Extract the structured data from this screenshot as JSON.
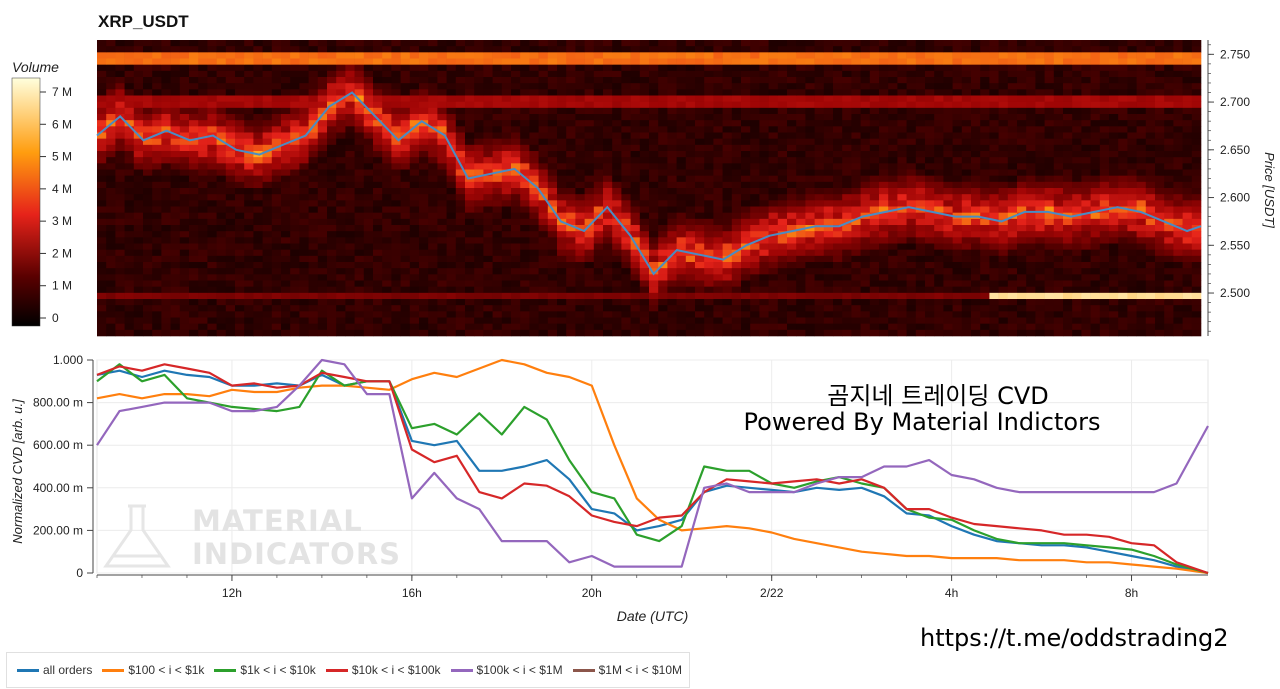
{
  "title": "XRP_USDT",
  "colorbar": {
    "label": "Volume",
    "ticks": [
      "7 M",
      "6 M",
      "5 M",
      "4 M",
      "3 M",
      "2 M",
      "1 M",
      "0"
    ]
  },
  "annotation": {
    "line1": "곰지네 트레이딩 CVD",
    "line2": "Powered By Material Indictors"
  },
  "watermark": {
    "line1": "MATERIAL",
    "line2": "INDICATORS"
  },
  "telegram_link": "https://t.me/oddstrading2",
  "colors": {
    "all_orders": "#1f77b4",
    "s100_1k": "#ff7f0e",
    "s1k_10k": "#2ca02c",
    "s10k_100k": "#d62728",
    "s100k_1m": "#9467bd",
    "s1m_10m": "#8c564b",
    "price_line": "#4a8cc4"
  },
  "chart_data": [
    {
      "type": "heatmap",
      "title": "XRP_USDT",
      "ylabel": "Price [USDT]",
      "y_ticks": [
        "2.750",
        "2.700",
        "2.650",
        "2.600",
        "2.550",
        "2.500"
      ],
      "y_tick_values": [
        2.75,
        2.7,
        2.65,
        2.6,
        2.55,
        2.5
      ],
      "ylim": [
        2.455,
        2.765
      ],
      "colorbar": {
        "label": "Volume",
        "range_M": [
          0,
          7.5
        ]
      },
      "price_series": {
        "name": "price",
        "x_hours": [
          0,
          0.5,
          1,
          1.5,
          2,
          2.5,
          3,
          3.5,
          4,
          4.5,
          5,
          5.5,
          6,
          6.5,
          7,
          7.5,
          8,
          8.5,
          9,
          9.5,
          10,
          10.5,
          11,
          11.5,
          12,
          12.5,
          13,
          13.5,
          14,
          14.5,
          15,
          15.5,
          16,
          16.5,
          17,
          17.5,
          18,
          18.5,
          19,
          19.5,
          20,
          20.5,
          21,
          21.5,
          22,
          22.5,
          23,
          23.5,
          23.8
        ],
        "values": [
          2.665,
          2.685,
          2.66,
          2.67,
          2.66,
          2.665,
          2.65,
          2.645,
          2.655,
          2.665,
          2.695,
          2.71,
          2.685,
          2.66,
          2.68,
          2.665,
          2.62,
          2.625,
          2.63,
          2.61,
          2.575,
          2.565,
          2.59,
          2.56,
          2.52,
          2.545,
          2.54,
          2.535,
          2.55,
          2.56,
          2.565,
          2.57,
          2.57,
          2.58,
          2.585,
          2.59,
          2.585,
          2.58,
          2.58,
          2.575,
          2.585,
          2.585,
          2.58,
          2.585,
          2.59,
          2.585,
          2.575,
          2.565,
          2.57
        ]
      },
      "hot_bands": [
        {
          "price": 2.745,
          "level_M": 4.5
        },
        {
          "price": 2.7,
          "level_M": 2.5
        },
        {
          "price": 2.498,
          "level_M": 1.8,
          "bright_from_hour": 19.2,
          "level_after_M": 6.5
        }
      ]
    },
    {
      "type": "line",
      "xlabel": "Date (UTC)",
      "ylabel": "Normalized CVD [arb. u.]",
      "x_tick_labels": [
        "12h",
        "16h",
        "20h",
        "2/22",
        "4h",
        "8h"
      ],
      "x_tick_hours": [
        12,
        16,
        20,
        24,
        28,
        32
      ],
      "xlim_hours": [
        9,
        33.7
      ],
      "y_tick_labels": [
        "1.000",
        "800.00 m",
        "600.00 m",
        "400.00 m",
        "200.00 m",
        "0"
      ],
      "y_tick_values": [
        1,
        0.8,
        0.6,
        0.4,
        0.2,
        0
      ],
      "ylim": [
        0,
        1
      ],
      "grid": true,
      "legend_position": "bottom-left",
      "x_hours": [
        9,
        9.5,
        10,
        10.5,
        11,
        11.5,
        12,
        12.5,
        13,
        13.5,
        14,
        14.5,
        15,
        15.5,
        16,
        16.5,
        17,
        17.5,
        18,
        18.5,
        19,
        19.5,
        20,
        20.5,
        21,
        21.5,
        22,
        22.5,
        23,
        23.5,
        24,
        24.5,
        25,
        25.5,
        26,
        26.5,
        27,
        27.5,
        28,
        28.5,
        29,
        29.5,
        30,
        30.5,
        31,
        31.5,
        32,
        32.5,
        33,
        33.7
      ],
      "series": [
        {
          "name": "all orders",
          "color": "#1f77b4",
          "values": [
            0.93,
            0.95,
            0.92,
            0.95,
            0.93,
            0.92,
            0.88,
            0.88,
            0.89,
            0.88,
            0.93,
            0.88,
            0.9,
            0.9,
            0.62,
            0.6,
            0.62,
            0.48,
            0.48,
            0.5,
            0.53,
            0.44,
            0.3,
            0.28,
            0.2,
            0.22,
            0.25,
            0.38,
            0.41,
            0.4,
            0.39,
            0.38,
            0.4,
            0.39,
            0.4,
            0.36,
            0.28,
            0.27,
            0.22,
            0.18,
            0.15,
            0.14,
            0.13,
            0.13,
            0.12,
            0.1,
            0.08,
            0.06,
            0.03,
            0.0
          ]
        },
        {
          "name": "$100 < i < $1k",
          "color": "#ff7f0e",
          "values": [
            0.82,
            0.84,
            0.82,
            0.84,
            0.84,
            0.83,
            0.86,
            0.85,
            0.85,
            0.87,
            0.88,
            0.88,
            0.87,
            0.86,
            0.91,
            0.94,
            0.92,
            0.96,
            1.0,
            0.98,
            0.94,
            0.92,
            0.88,
            0.6,
            0.35,
            0.25,
            0.2,
            0.21,
            0.22,
            0.21,
            0.19,
            0.16,
            0.14,
            0.12,
            0.1,
            0.09,
            0.08,
            0.08,
            0.07,
            0.07,
            0.07,
            0.06,
            0.06,
            0.06,
            0.05,
            0.05,
            0.04,
            0.03,
            0.02,
            0.0
          ]
        },
        {
          "name": "$1k < i < $10k",
          "color": "#2ca02c",
          "values": [
            0.9,
            0.98,
            0.9,
            0.93,
            0.82,
            0.8,
            0.78,
            0.77,
            0.76,
            0.78,
            0.95,
            0.88,
            0.9,
            0.9,
            0.68,
            0.7,
            0.65,
            0.75,
            0.65,
            0.78,
            0.72,
            0.53,
            0.38,
            0.35,
            0.18,
            0.15,
            0.22,
            0.5,
            0.48,
            0.48,
            0.42,
            0.4,
            0.43,
            0.45,
            0.42,
            0.4,
            0.3,
            0.26,
            0.25,
            0.2,
            0.16,
            0.14,
            0.14,
            0.14,
            0.13,
            0.12,
            0.11,
            0.08,
            0.04,
            0.0
          ]
        },
        {
          "name": "$10k < i < $100k",
          "color": "#d62728",
          "values": [
            0.93,
            0.97,
            0.95,
            0.98,
            0.96,
            0.94,
            0.88,
            0.89,
            0.87,
            0.88,
            0.94,
            0.92,
            0.9,
            0.9,
            0.58,
            0.52,
            0.55,
            0.38,
            0.35,
            0.42,
            0.41,
            0.36,
            0.27,
            0.24,
            0.22,
            0.26,
            0.27,
            0.38,
            0.44,
            0.43,
            0.42,
            0.43,
            0.44,
            0.42,
            0.44,
            0.4,
            0.3,
            0.3,
            0.26,
            0.23,
            0.22,
            0.21,
            0.2,
            0.18,
            0.18,
            0.17,
            0.14,
            0.13,
            0.05,
            0.0
          ]
        },
        {
          "name": "$100k < i < $1M",
          "color": "#9467bd",
          "values": [
            0.6,
            0.76,
            0.78,
            0.8,
            0.8,
            0.8,
            0.76,
            0.76,
            0.78,
            0.88,
            1.0,
            0.98,
            0.84,
            0.84,
            0.35,
            0.47,
            0.35,
            0.3,
            0.15,
            0.15,
            0.15,
            0.05,
            0.08,
            0.03,
            0.03,
            0.03,
            0.03,
            0.4,
            0.42,
            0.38,
            0.38,
            0.38,
            0.42,
            0.45,
            0.45,
            0.5,
            0.5,
            0.53,
            0.46,
            0.44,
            0.4,
            0.38,
            0.38,
            0.38,
            0.38,
            0.38,
            0.38,
            0.38,
            0.42,
            0.69
          ]
        },
        {
          "name": "$1M < i < $10M",
          "color": "#8c564b",
          "values": []
        }
      ]
    }
  ]
}
